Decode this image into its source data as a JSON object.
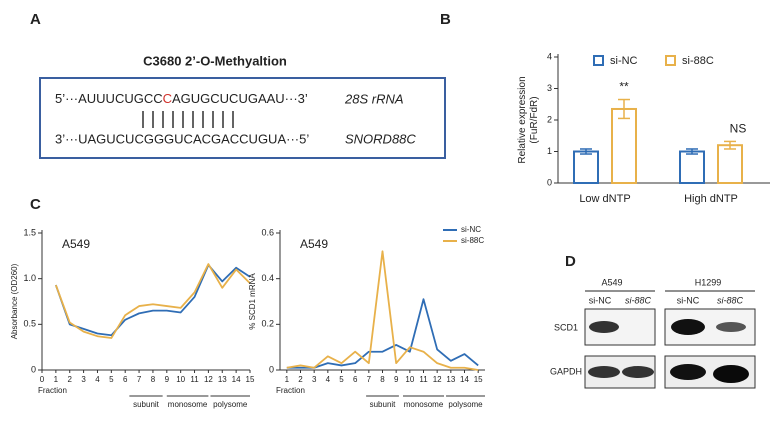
{
  "panel_labels": [
    "A",
    "B",
    "C",
    "D"
  ],
  "panel_a": {
    "title": "C3680 2’-O-Methyaltion",
    "top_strand": [
      "5’···AUUUCUGCC",
      "C",
      "AGUGCUCUGAAU···3’"
    ],
    "top_label": "28S rRNA",
    "bottom_strand": "3’···UAGUCUCGGGUCACGACCUGUA···5’",
    "bottom_label": "SNORD88C"
  },
  "chart_data": [
    {
      "type": "bar",
      "ylabel": [
        "Relative expression",
        "(FuR/FdR)"
      ],
      "categories": [
        "Low dNTP",
        "High dNTP"
      ],
      "series": [
        {
          "name": "si-NC",
          "color": "#2f6db5",
          "values": [
            1,
            1
          ],
          "errors": [
            0.08,
            0.08
          ]
        },
        {
          "name": "si-88C",
          "color": "#e8b14a",
          "values": [
            2.35,
            1.2
          ],
          "errors": [
            0.3,
            0.12
          ]
        }
      ],
      "annotations": [
        "**",
        "NS"
      ],
      "ylim": [
        0,
        4
      ],
      "yticks": [
        0,
        1,
        2,
        3,
        4
      ]
    },
    {
      "type": "line",
      "title": "A549",
      "ylabel": "Absorbance (OD260)",
      "xlabel": "Fraction",
      "groups": [
        "subunit",
        "monosome",
        "polysome"
      ],
      "x": [
        1,
        2,
        3,
        4,
        5,
        6,
        7,
        8,
        9,
        10,
        11,
        12,
        13,
        14,
        15
      ],
      "series": [
        {
          "color": "#2f6db5",
          "values": [
            0.93,
            0.5,
            0.45,
            0.4,
            0.38,
            0.55,
            0.62,
            0.65,
            0.65,
            0.63,
            0.8,
            1.15,
            0.97,
            1.12,
            1.02
          ]
        },
        {
          "color": "#e8b14a",
          "values": [
            0.93,
            0.52,
            0.42,
            0.37,
            0.35,
            0.6,
            0.7,
            0.72,
            0.7,
            0.68,
            0.85,
            1.16,
            0.9,
            1.1,
            0.95
          ]
        }
      ],
      "xlim": [
        0,
        15
      ],
      "xticks": [
        0,
        1,
        2,
        3,
        4,
        5,
        6,
        7,
        8,
        9,
        10,
        11,
        12,
        13,
        14,
        15
      ],
      "ylim": [
        0,
        1.5
      ],
      "yticks": [
        0,
        0.5,
        {
          "value": 1,
          "label": "1.0"
        },
        1.5
      ]
    },
    {
      "type": "line",
      "title": "A549",
      "ylabel": "% SCD1 mRNA",
      "xlabel": "Fraction",
      "groups": [
        "subunit",
        "monosome",
        "polysome"
      ],
      "x": [
        1,
        2,
        3,
        4,
        5,
        6,
        7,
        8,
        9,
        10,
        11,
        12,
        13,
        14,
        15
      ],
      "series": [
        {
          "name": "si-NC",
          "color": "#2f6db5",
          "values": [
            0.01,
            0.01,
            0.01,
            0.03,
            0.02,
            0.03,
            0.08,
            0.08,
            0.11,
            0.08,
            0.31,
            0.09,
            0.04,
            0.07,
            0.02
          ]
        },
        {
          "name": "si-88C",
          "color": "#e8b14a",
          "values": [
            0.01,
            0.02,
            0.01,
            0.06,
            0.03,
            0.08,
            0.03,
            0.52,
            0.03,
            0.1,
            0.08,
            0.03,
            0.01,
            0.01,
            0
          ]
        }
      ],
      "xlim": [
        0.5,
        15.5
      ],
      "xticks": [
        1,
        2,
        3,
        4,
        5,
        6,
        7,
        8,
        9,
        10,
        11,
        12,
        13,
        14,
        15
      ],
      "ylim": [
        0,
        0.6
      ],
      "yticks": [
        0,
        0.2,
        0.4,
        0.6
      ]
    }
  ],
  "panel_d": {
    "cell_lines": [
      "A549",
      "H1299"
    ],
    "lanes": [
      "si-NC",
      "si-88C",
      "si-NC",
      "si-88C"
    ],
    "proteins": [
      "SCD1",
      "GAPDH"
    ]
  }
}
